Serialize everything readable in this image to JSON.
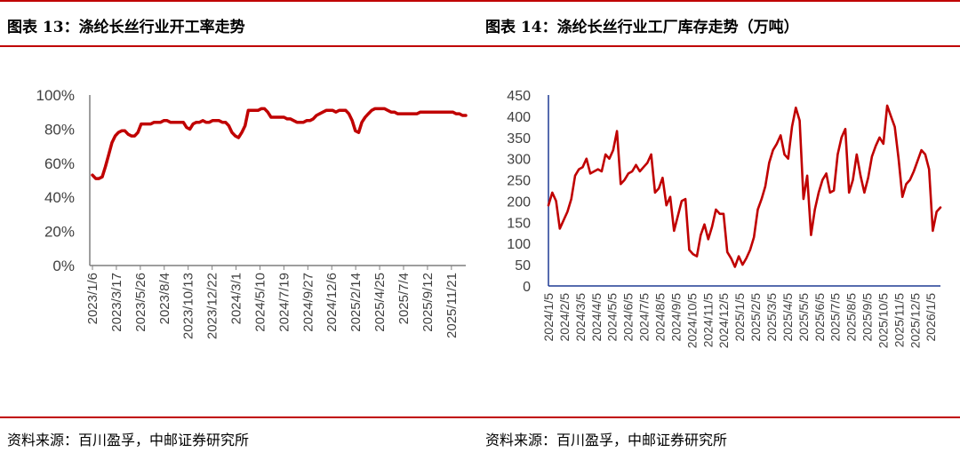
{
  "left_panel": {
    "title": "图表 13：涤纶长丝行业开工率走势",
    "source": "资料来源：百川盈孚，中邮证券研究所"
  },
  "right_panel": {
    "title": "图表 14：涤纶长丝行业工厂库存走势（万吨）",
    "source": "资料来源：百川盈孚，中邮证券研究所"
  },
  "colors": {
    "accent": "#c00000",
    "series": "#c00000",
    "axis": "#7f7f7f"
  },
  "chart_data": [
    {
      "type": "line",
      "title": "",
      "xlabel": "",
      "ylabel": "",
      "ylim": [
        0,
        100
      ],
      "y_ticks": [
        "0%",
        "20%",
        "40%",
        "60%",
        "80%",
        "100%"
      ],
      "x_tick_labels": [
        "2023/1/6",
        "2023/3/17",
        "2023/5/26",
        "2023/8/4",
        "2023/10/13",
        "2023/12/22",
        "2024/3/1",
        "2024/5/10",
        "2024/7/19",
        "2024/9/27",
        "2024/12/6",
        "2025/2/14",
        "2025/4/25",
        "2025/7/4",
        "2025/9/12",
        "2025/11/21"
      ],
      "grid": false,
      "series": [
        {
          "values": [
            53,
            51,
            51,
            52,
            58,
            65,
            72,
            76,
            78,
            79,
            79,
            77,
            76,
            76,
            78,
            83,
            83,
            83,
            83,
            84,
            84,
            84,
            85,
            85,
            84,
            84,
            84,
            84,
            84,
            81,
            80,
            83,
            84,
            84,
            85,
            84,
            84,
            85,
            85,
            85,
            84,
            84,
            82,
            78,
            76,
            75,
            78,
            82,
            91,
            91,
            91,
            91,
            92,
            92,
            90,
            87,
            87,
            87,
            87,
            87,
            86,
            86,
            85,
            84,
            84,
            84,
            85,
            85,
            86,
            88,
            89,
            90,
            91,
            91,
            91,
            90,
            91,
            91,
            91,
            89,
            85,
            79,
            78,
            84,
            87,
            89,
            91,
            92,
            92,
            92,
            92,
            91,
            90,
            90,
            89,
            89,
            89,
            89,
            89,
            89,
            89,
            90,
            90,
            90,
            90,
            90,
            90,
            90,
            90,
            90,
            90,
            90,
            89,
            89,
            88,
            88
          ]
        }
      ]
    },
    {
      "type": "line",
      "title": "",
      "xlabel": "",
      "ylabel": "",
      "ylim": [
        0,
        450
      ],
      "y_ticks": [
        "0",
        "50",
        "100",
        "150",
        "200",
        "250",
        "300",
        "350",
        "400",
        "450"
      ],
      "x_tick_labels": [
        "2024/1/5",
        "2024/2/5",
        "2024/3/5",
        "2024/4/5",
        "2024/5/5",
        "2024/6/5",
        "2024/7/5",
        "2024/8/5",
        "2024/9/5",
        "2024/10/5",
        "2024/11/5",
        "2024/12/5",
        "2025/1/5",
        "2025/2/5",
        "2025/3/5",
        "2025/4/5",
        "2025/5/5",
        "2025/6/5",
        "2025/7/5",
        "2025/8/5",
        "2025/9/5",
        "2025/10/5",
        "2025/11/5",
        "2025/12/5",
        "2026/1/5"
      ],
      "grid": false,
      "series": [
        {
          "values": [
            190,
            220,
            200,
            135,
            155,
            175,
            205,
            260,
            275,
            280,
            300,
            265,
            270,
            275,
            270,
            310,
            300,
            320,
            365,
            240,
            250,
            265,
            270,
            285,
            270,
            280,
            290,
            310,
            220,
            230,
            255,
            190,
            210,
            130,
            165,
            200,
            205,
            85,
            75,
            70,
            120,
            145,
            110,
            140,
            180,
            170,
            170,
            80,
            65,
            45,
            70,
            50,
            65,
            85,
            115,
            180,
            205,
            235,
            290,
            320,
            335,
            355,
            310,
            300,
            375,
            420,
            390,
            205,
            260,
            120,
            180,
            220,
            250,
            265,
            220,
            225,
            310,
            350,
            370,
            220,
            250,
            310,
            260,
            220,
            255,
            305,
            330,
            350,
            335,
            425,
            400,
            375,
            300,
            210,
            240,
            250,
            270,
            295,
            320,
            310,
            275,
            130,
            175,
            185
          ]
        }
      ]
    }
  ]
}
